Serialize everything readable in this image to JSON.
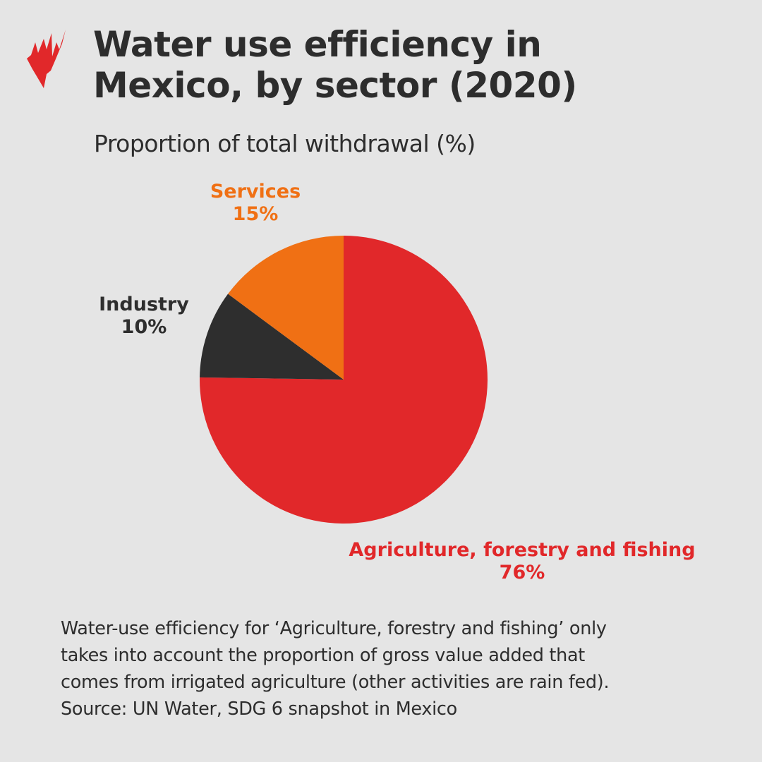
{
  "header": {
    "title_line1": "Water use efficiency in",
    "title_line2": "Mexico, by sector (2020)",
    "subtitle": "Proportion of total withdrawal (%)",
    "logo_icon": "sbs-flame-logo"
  },
  "chart_data": {
    "type": "pie",
    "title": "Water use efficiency in Mexico, by sector (2020)",
    "subtitle": "Proportion of total withdrawal (%)",
    "start_angle": "12 o'clock",
    "direction": "clockwise",
    "slices": [
      {
        "label": "Agriculture, forestry and fishing",
        "value": 76,
        "value_label": "76%",
        "color": "#e1282a"
      },
      {
        "label": "Industry",
        "value": 10,
        "value_label": "10%",
        "color": "#2e2e2e"
      },
      {
        "label": "Services",
        "value": 15,
        "value_label": "15%",
        "color": "#f07014"
      }
    ]
  },
  "footer": {
    "note_line1": "Water-use efficiency for ‘Agriculture, forestry and fishing’ only",
    "note_line2": "takes into account the proportion of gross value added that",
    "note_line3": "comes from irrigated agriculture (other activities are rain fed).",
    "source": "Source: UN Water, SDG 6 snapshot in Mexico"
  }
}
